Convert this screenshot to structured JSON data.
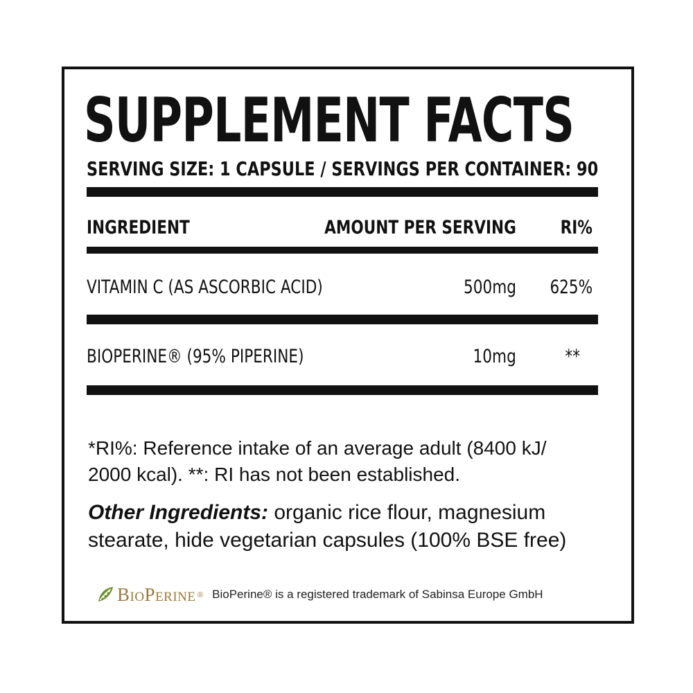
{
  "label": {
    "title": "SUPPLEMENT FACTS",
    "serving_line": "SERVING SIZE: 1 CAPSULE / SERVINGS PER CONTAINER: 90",
    "columns": {
      "ingredient": "INGREDIENT",
      "amount": "AMOUNT PER SERVING",
      "ri": "RI%"
    },
    "rows": [
      {
        "name": "VITAMIN C (AS ASCORBIC ACID)",
        "amount": "500mg",
        "ri": "625%"
      },
      {
        "name": "BIOPERINE® (95% PIPERINE)",
        "amount": "10mg",
        "ri": "**"
      }
    ],
    "footnote": "*RI%: Reference intake of an average adult (8400 kJ/ 2000 kcal). **: RI has not been established.",
    "other_ingredients": {
      "lead": "Other Ingredients:",
      "text": " organic rice flour, magnesium stearate, hide vegetarian capsules (100% BSE free)"
    },
    "brand": {
      "logo_text": "BioPerine",
      "logo_mark": "®",
      "logo_color": "#9a7a3a",
      "leaf_color": "#6a8f2e",
      "trademark_note": "BioPerine® is a registered trademark of  Sabinsa Europe GmbH"
    }
  }
}
